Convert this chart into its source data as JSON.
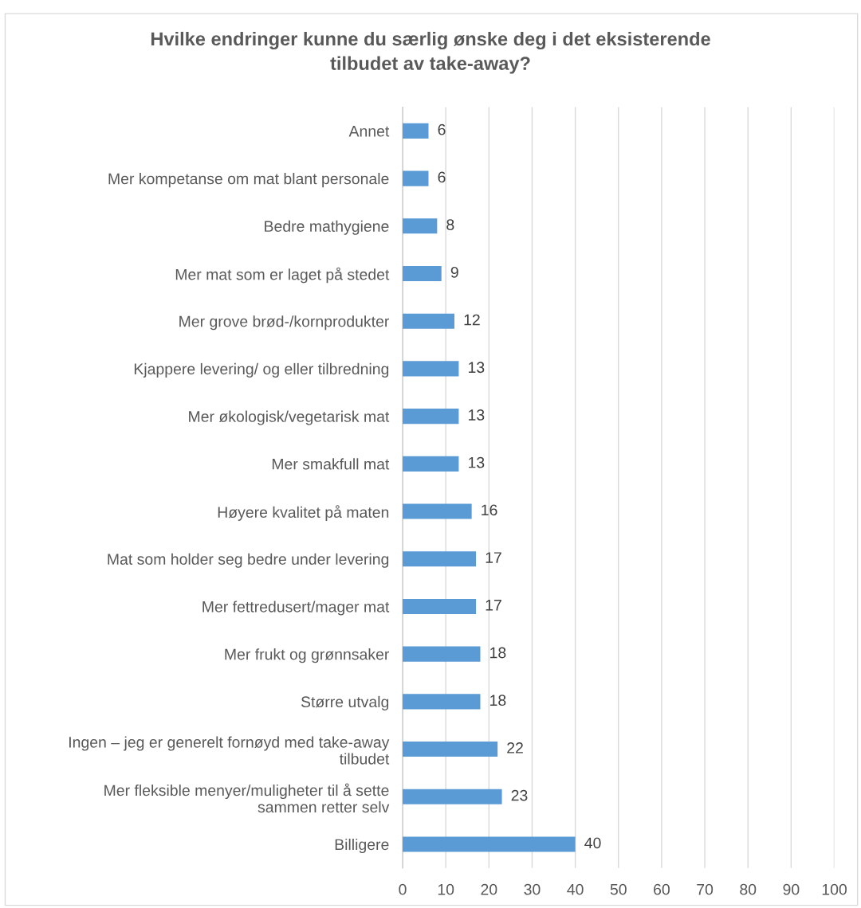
{
  "chart_data": {
    "type": "bar",
    "orientation": "horizontal",
    "title": "Hvilke endringer kunne du særlig ønske deg i det eksisterende tilbudet av take-away?",
    "categories": [
      "Annet",
      "Mer kompetanse om mat blant personale",
      "Bedre mathygiene",
      "Mer mat som er laget på stedet",
      "Mer grove brød-/kornprodukter",
      "Kjappere levering/ og eller tilbredning",
      "Mer økologisk/vegetarisk mat",
      "Mer smakfull mat",
      "Høyere kvalitet på maten",
      "Mat som holder seg bedre under levering",
      "Mer fettredusert/mager mat",
      "Mer frukt og grønnsaker",
      "Større utvalg",
      "Ingen – jeg er generelt fornøyd med take-away tilbudet",
      "Mer fleksible menyer/muligheter til å sette sammen retter selv",
      "Billigere"
    ],
    "values": [
      6,
      6,
      8,
      9,
      12,
      13,
      13,
      13,
      16,
      17,
      17,
      18,
      18,
      22,
      23,
      40
    ],
    "color": "#5b9bd5",
    "xlim": [
      0,
      100
    ],
    "xticks": [
      0,
      10,
      20,
      30,
      40,
      50,
      60,
      70,
      80,
      90,
      100
    ],
    "grid": "x",
    "data_labels": true
  }
}
